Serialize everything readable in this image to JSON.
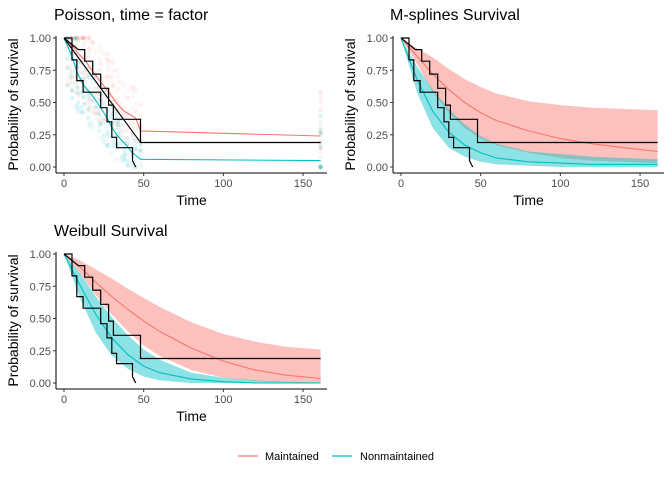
{
  "colors": {
    "maintained": "#F8766D",
    "nonmaintained": "#00BFC4",
    "km": "#000000"
  },
  "legend": {
    "position": "bottom",
    "items": [
      {
        "label": "Maintained",
        "color": "#F8766D"
      },
      {
        "label": "Nonmaintained",
        "color": "#00BFC4"
      }
    ]
  },
  "chart_data": [
    {
      "type": "line",
      "title": "Poisson, time = factor",
      "xlabel": "Time",
      "ylabel": "Probability of survival",
      "xlim": [
        0,
        160
      ],
      "ylim": [
        0,
        1
      ],
      "xticks": [
        "0",
        "50",
        "100",
        "150"
      ],
      "yticks": [
        "0.00",
        "0.25",
        "0.50",
        "0.75",
        "1.00"
      ],
      "grid": false,
      "scatter_cloud": true,
      "series": [
        {
          "name": "Maintained",
          "x": [
            0,
            5,
            9,
            13,
            18,
            23,
            28,
            31,
            34,
            38,
            45,
            48,
            161
          ],
          "y": [
            1.0,
            0.94,
            0.88,
            0.83,
            0.74,
            0.66,
            0.58,
            0.53,
            0.48,
            0.43,
            0.38,
            0.28,
            0.24
          ]
        },
        {
          "name": "Nonmaintained",
          "x": [
            0,
            5,
            8,
            12,
            18,
            23,
            27,
            30,
            33,
            39,
            43,
            48,
            161
          ],
          "y": [
            1.0,
            0.86,
            0.74,
            0.64,
            0.55,
            0.46,
            0.38,
            0.31,
            0.25,
            0.17,
            0.11,
            0.06,
            0.05
          ]
        },
        {
          "name": "",
          "x": [
            0,
            48,
            161
          ],
          "y": [
            1.0,
            0.19,
            0.19
          ]
        }
      ],
      "km_curves": [
        {
          "x": [
            0,
            9,
            13,
            13,
            18,
            18,
            23,
            23,
            28,
            28,
            31,
            31,
            34,
            34,
            48,
            48,
            161
          ],
          "y": [
            1.0,
            0.91,
            0.91,
            0.82,
            0.82,
            0.72,
            0.72,
            0.61,
            0.61,
            0.48,
            0.48,
            0.37,
            0.37,
            0.37,
            0.37,
            0.19,
            0.19
          ]
        },
        {
          "x": [
            0,
            5,
            5,
            8,
            8,
            12,
            12,
            23,
            23,
            27,
            27,
            30,
            30,
            33,
            33,
            43,
            43,
            45
          ],
          "y": [
            1.0,
            1.0,
            0.83,
            0.83,
            0.67,
            0.67,
            0.58,
            0.58,
            0.46,
            0.46,
            0.35,
            0.35,
            0.23,
            0.23,
            0.15,
            0.15,
            0.05,
            0.0
          ]
        }
      ]
    },
    {
      "type": "area",
      "title": "M-splines Survival",
      "xlabel": "Time",
      "ylabel": "Probability of survival",
      "xlim": [
        0,
        160
      ],
      "ylim": [
        0,
        1
      ],
      "xticks": [
        "0",
        "50",
        "100",
        "150"
      ],
      "yticks": [
        "0.00",
        "0.25",
        "0.50",
        "0.75",
        "1.00"
      ],
      "grid": false,
      "series": [
        {
          "name": "Maintained",
          "x": [
            0,
            10,
            20,
            30,
            40,
            50,
            60,
            80,
            100,
            120,
            140,
            161
          ],
          "y": [
            1.0,
            0.86,
            0.72,
            0.6,
            0.5,
            0.42,
            0.36,
            0.28,
            0.22,
            0.18,
            0.15,
            0.12
          ],
          "lower": [
            1.0,
            0.8,
            0.58,
            0.42,
            0.3,
            0.22,
            0.17,
            0.11,
            0.07,
            0.05,
            0.04,
            0.03
          ],
          "upper": [
            1.0,
            0.92,
            0.85,
            0.76,
            0.68,
            0.62,
            0.57,
            0.51,
            0.48,
            0.46,
            0.45,
            0.44
          ]
        },
        {
          "name": "Nonmaintained",
          "x": [
            0,
            10,
            20,
            30,
            40,
            50,
            60,
            80,
            100,
            120,
            140,
            161
          ],
          "y": [
            1.0,
            0.68,
            0.43,
            0.27,
            0.17,
            0.11,
            0.07,
            0.04,
            0.03,
            0.02,
            0.02,
            0.02
          ],
          "lower": [
            1.0,
            0.58,
            0.3,
            0.15,
            0.08,
            0.04,
            0.02,
            0.01,
            0.0,
            0.0,
            0.0,
            0.0
          ],
          "upper": [
            1.0,
            0.78,
            0.6,
            0.45,
            0.33,
            0.24,
            0.18,
            0.12,
            0.1,
            0.08,
            0.07,
            0.06
          ]
        }
      ],
      "km_curves": [
        {
          "x": [
            0,
            9,
            13,
            13,
            18,
            18,
            23,
            23,
            28,
            28,
            31,
            31,
            34,
            34,
            48,
            48,
            161
          ],
          "y": [
            1.0,
            0.91,
            0.91,
            0.82,
            0.82,
            0.72,
            0.72,
            0.61,
            0.61,
            0.48,
            0.48,
            0.37,
            0.37,
            0.37,
            0.37,
            0.19,
            0.19
          ]
        },
        {
          "x": [
            0,
            5,
            5,
            8,
            8,
            12,
            12,
            23,
            23,
            27,
            27,
            30,
            30,
            33,
            33,
            43,
            43,
            45
          ],
          "y": [
            1.0,
            1.0,
            0.83,
            0.83,
            0.67,
            0.67,
            0.58,
            0.58,
            0.46,
            0.46,
            0.35,
            0.35,
            0.23,
            0.23,
            0.15,
            0.15,
            0.05,
            0.0
          ]
        }
      ]
    },
    {
      "type": "area",
      "title": "Weibull Survival",
      "xlabel": "Time",
      "ylabel": "Probability of survival",
      "xlim": [
        0,
        160
      ],
      "ylim": [
        0,
        1
      ],
      "xticks": [
        "0",
        "50",
        "100",
        "150"
      ],
      "yticks": [
        "0.00",
        "0.25",
        "0.50",
        "0.75",
        "1.00"
      ],
      "grid": false,
      "series": [
        {
          "name": "Maintained",
          "x": [
            0,
            10,
            20,
            30,
            40,
            50,
            60,
            80,
            100,
            120,
            140,
            161
          ],
          "y": [
            1.0,
            0.9,
            0.78,
            0.67,
            0.57,
            0.48,
            0.4,
            0.27,
            0.17,
            0.1,
            0.06,
            0.035
          ],
          "lower": [
            1.0,
            0.85,
            0.68,
            0.53,
            0.4,
            0.29,
            0.21,
            0.1,
            0.04,
            0.015,
            0.005,
            0.0
          ],
          "upper": [
            1.0,
            0.95,
            0.88,
            0.81,
            0.73,
            0.66,
            0.59,
            0.47,
            0.38,
            0.32,
            0.28,
            0.26
          ]
        },
        {
          "name": "Nonmaintained",
          "x": [
            0,
            10,
            20,
            30,
            40,
            50,
            60,
            80,
            100,
            120,
            140,
            161
          ],
          "y": [
            1.0,
            0.76,
            0.53,
            0.35,
            0.22,
            0.13,
            0.08,
            0.03,
            0.01,
            0.0,
            0.0,
            0.0
          ],
          "lower": [
            1.0,
            0.66,
            0.39,
            0.21,
            0.11,
            0.05,
            0.02,
            0.0,
            0.0,
            0.0,
            0.0,
            0.0
          ],
          "upper": [
            1.0,
            0.85,
            0.67,
            0.51,
            0.37,
            0.26,
            0.18,
            0.08,
            0.04,
            0.02,
            0.01,
            0.005
          ]
        }
      ],
      "km_curves": [
        {
          "x": [
            0,
            9,
            13,
            13,
            18,
            18,
            23,
            23,
            28,
            28,
            31,
            31,
            34,
            34,
            48,
            48,
            161
          ],
          "y": [
            1.0,
            0.91,
            0.91,
            0.82,
            0.82,
            0.72,
            0.72,
            0.61,
            0.61,
            0.48,
            0.48,
            0.37,
            0.37,
            0.37,
            0.37,
            0.19,
            0.19
          ]
        },
        {
          "x": [
            0,
            5,
            5,
            8,
            8,
            12,
            12,
            23,
            23,
            27,
            27,
            30,
            30,
            33,
            33,
            43,
            43,
            45
          ],
          "y": [
            1.0,
            1.0,
            0.83,
            0.83,
            0.67,
            0.67,
            0.58,
            0.58,
            0.46,
            0.46,
            0.35,
            0.35,
            0.23,
            0.23,
            0.15,
            0.15,
            0.05,
            0.0
          ]
        }
      ]
    }
  ]
}
